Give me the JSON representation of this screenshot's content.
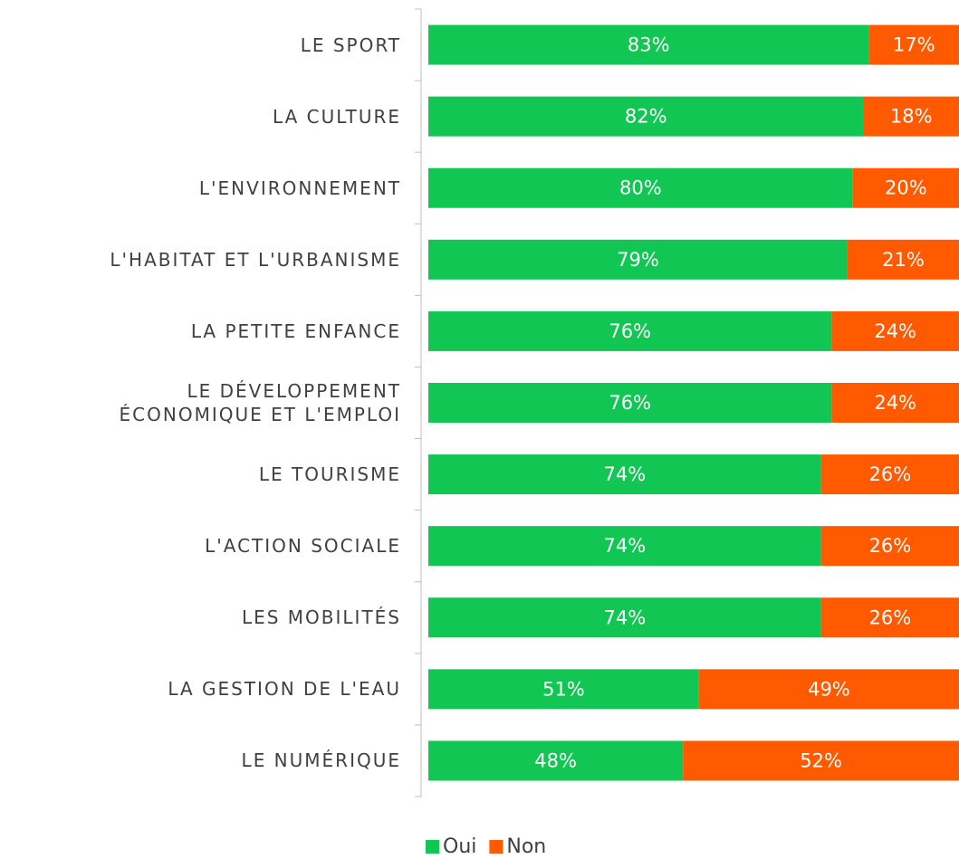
{
  "chart_data": {
    "type": "stacked-bar-horizontal",
    "categories": [
      "LE SPORT",
      "LA CULTURE",
      "L'ENVIRONNEMENT",
      "L'HABITAT ET L'URBANISME",
      "LA PETITE ENFANCE",
      "LE DÉVELOPPEMENT ÉCONOMIQUE ET L'EMPLOI",
      "LE TOURISME",
      "L'ACTION SOCIALE",
      "LES MOBILITÉS",
      "LA GESTION DE L'EAU",
      "LE NUMÉRIQUE"
    ],
    "series": [
      {
        "name": "Oui",
        "color": "#11c653",
        "values": [
          83,
          82,
          80,
          79,
          76,
          76,
          74,
          74,
          74,
          51,
          48
        ],
        "value_labels": [
          "83%",
          "82%",
          "80%",
          "79%",
          "76%",
          "76%",
          "74%",
          "74%",
          "74%",
          "51%",
          "48%"
        ]
      },
      {
        "name": "Non",
        "color": "#ff5a00",
        "values": [
          17,
          18,
          20,
          21,
          24,
          24,
          26,
          26,
          26,
          49,
          52
        ],
        "value_labels": [
          "17%",
          "18%",
          "20%",
          "21%",
          "24%",
          "24%",
          "26%",
          "26%",
          "26%",
          "49%",
          "52%"
        ]
      }
    ],
    "xlim": [
      0,
      100
    ],
    "legend": "bottom"
  }
}
